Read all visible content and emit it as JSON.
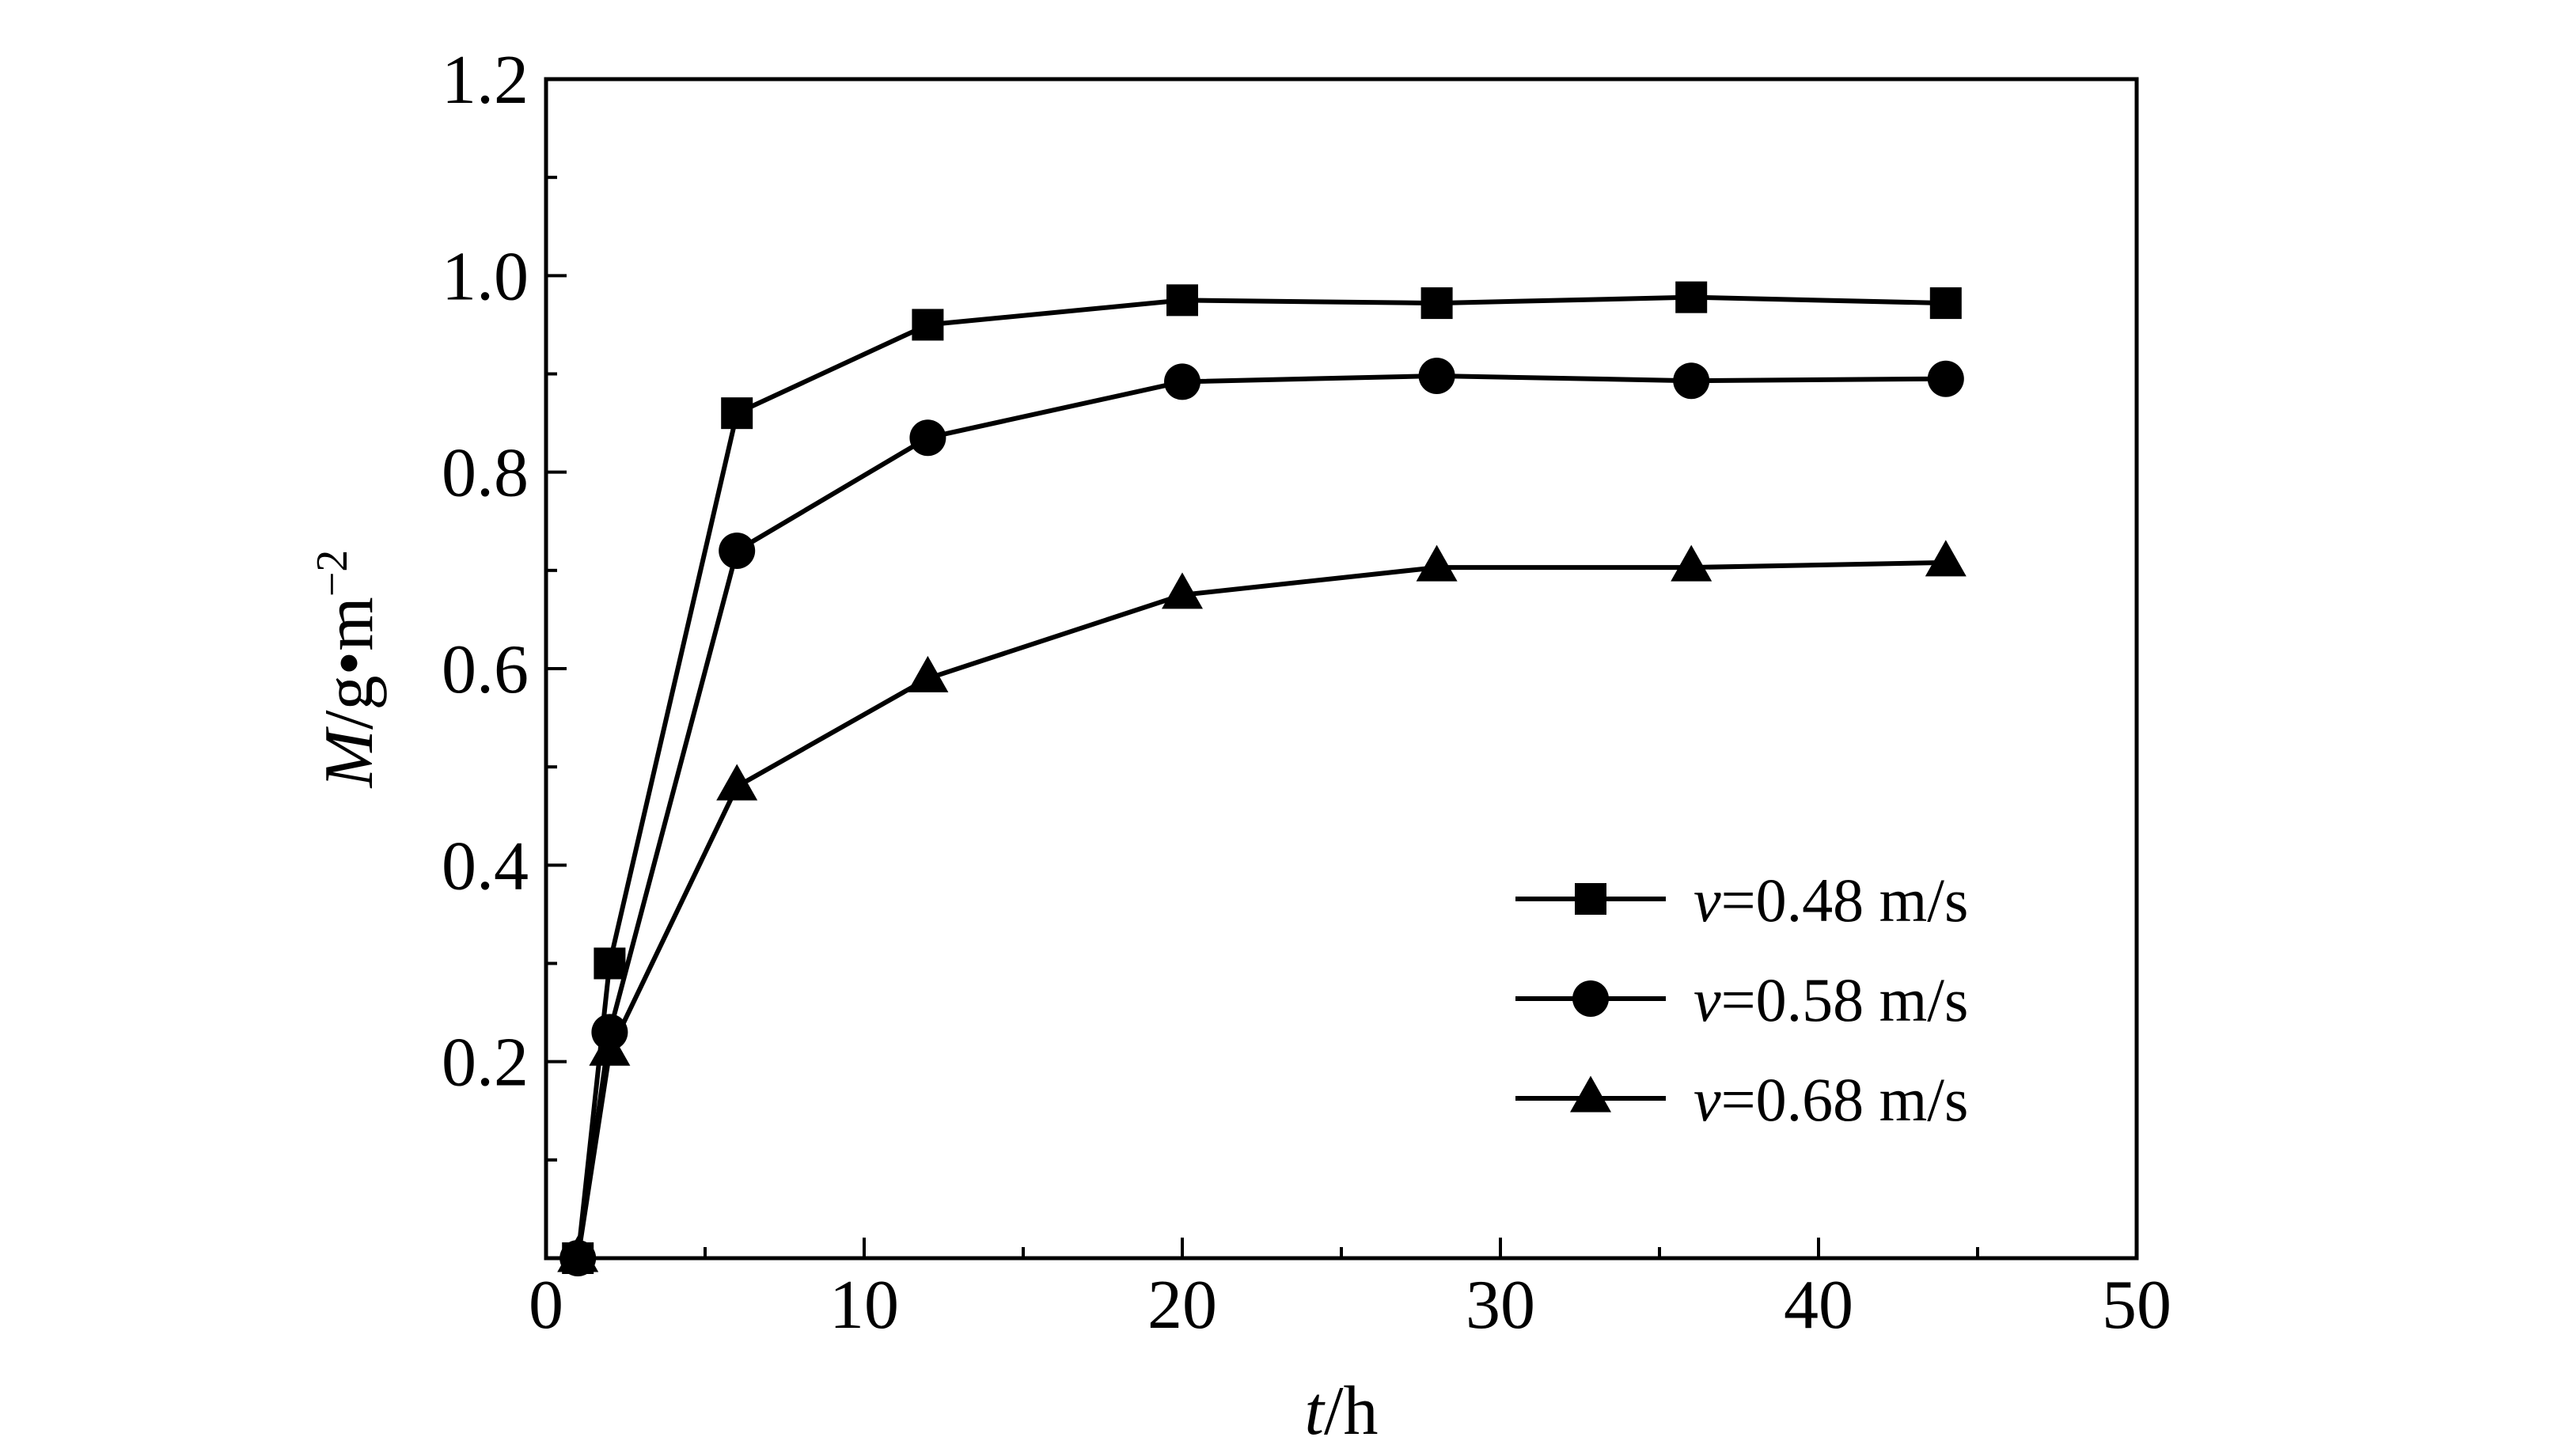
{
  "chart_data": {
    "type": "line",
    "xlabel": {
      "italic": "t",
      "rest": "/h"
    },
    "ylabel": {
      "italic": "M",
      "rest": "/g•m",
      "sup": "−2"
    },
    "xlim": [
      0,
      50
    ],
    "ylim": [
      0,
      1.2
    ],
    "x_ticks": [
      0,
      10,
      20,
      30,
      40,
      50
    ],
    "x_tick_labels": [
      "0",
      "10",
      "20",
      "30",
      "40",
      "50"
    ],
    "y_ticks": [
      0.2,
      0.4,
      0.6,
      0.8,
      1.0,
      1.2
    ],
    "y_tick_labels": [
      "0.2",
      "0.4",
      "0.6",
      "0.8",
      "1.0",
      "1.2"
    ],
    "grid": false,
    "legend_position": "bottom-right",
    "series": [
      {
        "name": "v=0.48 m/s",
        "name_parts": {
          "italic": "v",
          "rest": "=0.48 m/s"
        },
        "marker": "square",
        "x": [
          1,
          2,
          6,
          12,
          20,
          28,
          36,
          44
        ],
        "y": [
          0.0,
          0.3,
          0.86,
          0.95,
          0.975,
          0.972,
          0.978,
          0.972
        ]
      },
      {
        "name": "v=0.58 m/s",
        "name_parts": {
          "italic": "v",
          "rest": "=0.58 m/s"
        },
        "marker": "circle",
        "x": [
          1,
          2,
          6,
          12,
          20,
          28,
          36,
          44
        ],
        "y": [
          0.0,
          0.23,
          0.72,
          0.835,
          0.892,
          0.898,
          0.893,
          0.895
        ]
      },
      {
        "name": "v=0.68 m/s",
        "name_parts": {
          "italic": "v",
          "rest": "=0.68 m/s"
        },
        "marker": "triangle",
        "x": [
          1,
          2,
          6,
          12,
          20,
          28,
          36,
          44
        ],
        "y": [
          0.0,
          0.21,
          0.48,
          0.59,
          0.675,
          0.703,
          0.703,
          0.708
        ]
      }
    ]
  }
}
